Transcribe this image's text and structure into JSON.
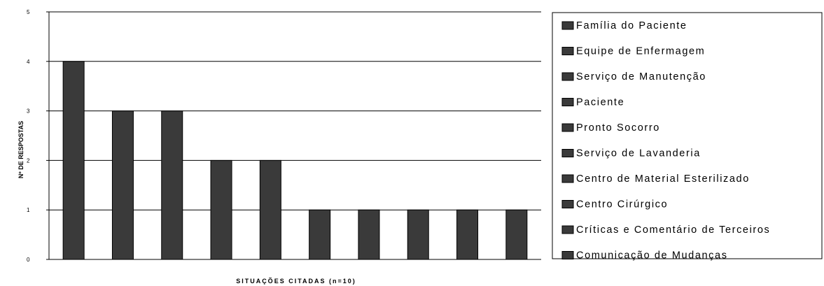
{
  "chart_data": {
    "type": "bar",
    "title": "",
    "xlabel": "SITUAÇÕES CITADAS (n=10)",
    "ylabel": "Nº DE RESPOSTAS",
    "ylim": [
      0,
      5
    ],
    "yticks": [
      0,
      1,
      2,
      3,
      4,
      5
    ],
    "grid": true,
    "legend_position": "right",
    "bar_color": "#3a3a3a",
    "categories": [
      "Família do Paciente",
      "Equipe de Enfermagem",
      "Serviço de Manutenção",
      "Paciente",
      "Pronto Socorro",
      "Serviço de Lavanderia",
      "Centro de Material Esterilizado",
      "Centro Cirúrgico",
      "Críticas e Comentário de Terceiros",
      "Comunicação de Mudanças"
    ],
    "values": [
      4,
      3,
      3,
      2,
      2,
      1,
      1,
      1,
      1,
      1
    ]
  }
}
